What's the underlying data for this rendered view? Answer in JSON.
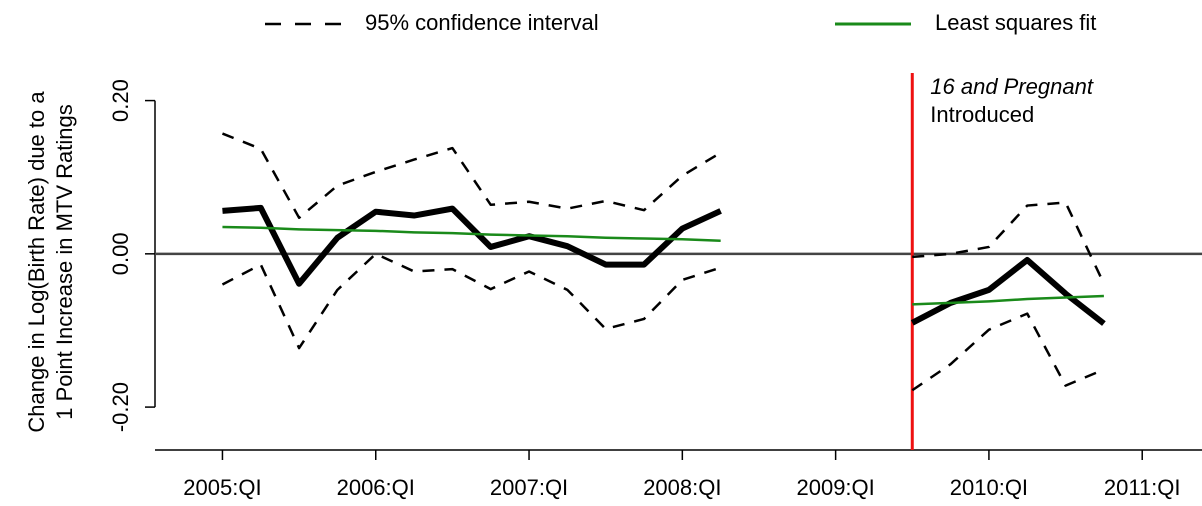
{
  "chart_data": {
    "type": "line",
    "legend": "top",
    "ylabel": [
      "Change in Log(Birth Rate) due to a",
      "1 Point Increase in MTV Ratings"
    ],
    "x": [
      2005,
      2005.25,
      2005.5,
      2005.75,
      2006,
      2006.25,
      2006.5,
      2006.75,
      2007,
      2007.25,
      2007.5,
      2007.75,
      2008,
      2008.25,
      2008.5,
      2008.75,
      2009,
      2009.25,
      2009.5,
      2009.75,
      2010,
      2010.25,
      2010.5,
      2010.75
    ],
    "xlim": [
      2004.56,
      2011.39
    ],
    "xticks": [
      {
        "value": 2005,
        "label": "2005:QI"
      },
      {
        "value": 2006,
        "label": "2006:QI"
      },
      {
        "value": 2007,
        "label": "2007:QI"
      },
      {
        "value": 2008,
        "label": "2008:QI"
      },
      {
        "value": 2009,
        "label": "2009:QI"
      },
      {
        "value": 2010,
        "label": "2010:QI"
      },
      {
        "value": 2011,
        "label": "2011:QI"
      }
    ],
    "ylim": [
      -0.256,
      0.236
    ],
    "yticks": [
      {
        "value": 0.2,
        "label": "0.20"
      },
      {
        "value": 0,
        "label": "0.00"
      },
      {
        "value": -0.2,
        "label": "-0.20"
      }
    ],
    "reference_line": 0,
    "annotation": {
      "x": 2009.5,
      "color": "#ee1111",
      "lines": [
        "16 and Pregnant",
        "Introduced"
      ]
    },
    "series": [
      {
        "name": "95% confidence interval",
        "color": "#000000",
        "style": "dashed",
        "values": [
          0.157,
          0.137,
          0.047,
          0.089,
          0.107,
          0.123,
          0.138,
          0.064,
          0.068,
          0.059,
          0.069,
          0.057,
          0.102,
          0.132,
          null,
          null,
          null,
          null,
          -0.004,
          0.0,
          0.009,
          0.063,
          0.067,
          -0.039
        ]
      },
      {
        "color": "#000000",
        "style": "dashed",
        "values": [
          -0.04,
          -0.014,
          -0.123,
          -0.047,
          0.0,
          -0.023,
          -0.02,
          -0.046,
          -0.023,
          -0.047,
          -0.098,
          -0.085,
          -0.034,
          -0.018,
          null,
          null,
          null,
          null,
          -0.178,
          -0.144,
          -0.099,
          -0.078,
          -0.172,
          -0.151
        ]
      },
      {
        "color": "#000000",
        "style": "thick",
        "values": [
          0.056,
          0.06,
          -0.039,
          0.021,
          0.055,
          0.05,
          0.059,
          0.009,
          0.023,
          0.01,
          -0.014,
          -0.014,
          0.033,
          0.056,
          null,
          null,
          null,
          null,
          -0.09,
          -0.064,
          -0.047,
          -0.008,
          -0.052,
          -0.091
        ]
      },
      {
        "name": "Least squares fit",
        "color": "#1a8a1a",
        "style": "solid",
        "values": [
          0.035,
          0.034,
          0.032,
          0.031,
          0.03,
          0.028,
          0.027,
          0.025,
          0.024,
          0.023,
          0.021,
          0.02,
          0.019,
          0.017,
          null,
          null,
          null,
          null,
          -0.066,
          -0.064,
          -0.062,
          -0.059,
          -0.057,
          -0.055
        ]
      }
    ]
  }
}
